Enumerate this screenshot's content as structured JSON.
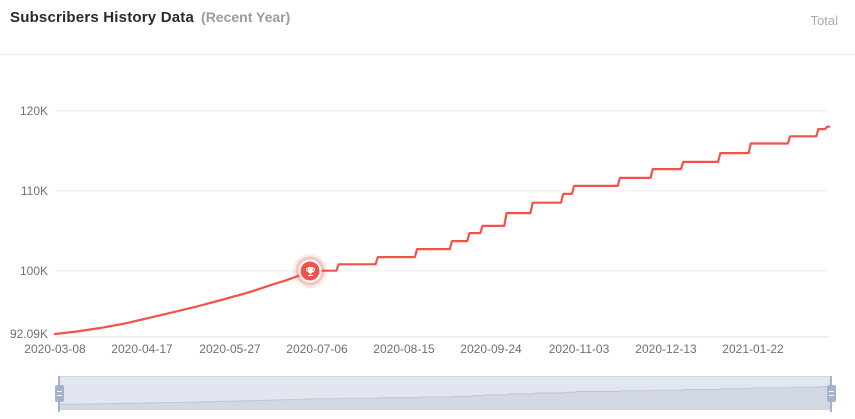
{
  "header": {
    "title": "Subscribers History Data",
    "subtitle": "(Recent Year)",
    "legend": {
      "label": "Total"
    }
  },
  "chart_data": {
    "type": "line",
    "title": "Subscribers History Data (Recent Year)",
    "series": [
      {
        "name": "Total",
        "unit": "subscribers (K)"
      }
    ],
    "line_color": "#f15249",
    "grid": true,
    "legend_position": "top-right",
    "ylim_k": [
      92.09,
      121
    ],
    "y_ticks": [
      {
        "label": "92.09K",
        "value_k": 92.09
      },
      {
        "label": "100K",
        "value_k": 100
      },
      {
        "label": "110K",
        "value_k": 110
      },
      {
        "label": "120K",
        "value_k": 120
      }
    ],
    "x_ticks": [
      "2020-03-08",
      "2020-04-17",
      "2020-05-27",
      "2020-07-06",
      "2020-08-15",
      "2020-09-24",
      "2020-11-03",
      "2020-12-13",
      "2021-01-22"
    ],
    "milestone": {
      "date": "2020-07-03",
      "value_k": 100.0,
      "icon": "trophy",
      "meaning": "100K subscribers milestone"
    },
    "points": [
      [
        "2020-03-08",
        92.09
      ],
      [
        "2020-03-18",
        92.4
      ],
      [
        "2020-03-29",
        92.85
      ],
      [
        "2020-04-09",
        93.4
      ],
      [
        "2020-04-20",
        94.1
      ],
      [
        "2020-05-01",
        94.8
      ],
      [
        "2020-05-13",
        95.6
      ],
      [
        "2020-05-24",
        96.4
      ],
      [
        "2020-06-05",
        97.3
      ],
      [
        "2020-06-16",
        98.3
      ],
      [
        "2020-06-22",
        98.8
      ],
      [
        "2020-06-28",
        99.4
      ],
      [
        "2020-07-03",
        100.0
      ],
      [
        "2020-07-15",
        100.0
      ],
      [
        "2020-07-16",
        100.8
      ],
      [
        "2020-08-02",
        100.8
      ],
      [
        "2020-08-03",
        101.7
      ],
      [
        "2020-08-20",
        101.7
      ],
      [
        "2020-08-21",
        102.7
      ],
      [
        "2020-09-05",
        102.7
      ],
      [
        "2020-09-06",
        103.7
      ],
      [
        "2020-09-13",
        103.7
      ],
      [
        "2020-09-14",
        104.7
      ],
      [
        "2020-09-19",
        104.7
      ],
      [
        "2020-09-20",
        105.6
      ],
      [
        "2020-09-30",
        105.6
      ],
      [
        "2020-10-01",
        107.2
      ],
      [
        "2020-10-12",
        107.2
      ],
      [
        "2020-10-13",
        108.5
      ],
      [
        "2020-10-26",
        108.5
      ],
      [
        "2020-10-27",
        109.6
      ],
      [
        "2020-10-31",
        109.6
      ],
      [
        "2020-11-01",
        110.6
      ],
      [
        "2020-11-21",
        110.6
      ],
      [
        "2020-11-22",
        111.6
      ],
      [
        "2020-12-06",
        111.6
      ],
      [
        "2020-12-07",
        112.7
      ],
      [
        "2020-12-20",
        112.7
      ],
      [
        "2020-12-21",
        113.6
      ],
      [
        "2021-01-06",
        113.6
      ],
      [
        "2021-01-07",
        114.7
      ],
      [
        "2021-01-20",
        114.7
      ],
      [
        "2021-01-21",
        115.9
      ],
      [
        "2021-02-07",
        115.9
      ],
      [
        "2021-02-08",
        116.8
      ],
      [
        "2021-02-20",
        116.8
      ],
      [
        "2021-02-21",
        117.7
      ],
      [
        "2021-02-24",
        117.7
      ],
      [
        "2021-02-25",
        118.0
      ],
      [
        "2021-02-26",
        118.0
      ]
    ]
  },
  "datazoom": {
    "range_percent": [
      0,
      100
    ]
  },
  "colors": {
    "line": "#f15249",
    "gridline": "#f0f0f3",
    "axis_line": "#e2e2e6",
    "axis_label": "#6e7079",
    "slider_bg": "#e2e6f0",
    "slider_fill": "#d2d8e4",
    "slider_stroke": "#bdc5d4",
    "handle": "#a6b2c9"
  }
}
